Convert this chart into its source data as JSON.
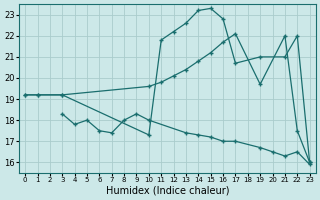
{
  "xlabel": "Humidex (Indice chaleur)",
  "xlim": [
    -0.5,
    23.5
  ],
  "ylim": [
    15.5,
    23.5
  ],
  "xticks": [
    0,
    1,
    2,
    3,
    4,
    5,
    6,
    7,
    8,
    9,
    10,
    11,
    12,
    13,
    14,
    15,
    16,
    17,
    18,
    19,
    20,
    21,
    22,
    23
  ],
  "yticks": [
    16,
    17,
    18,
    19,
    20,
    21,
    22,
    23
  ],
  "bg_color": "#cce8e8",
  "line_color": "#1a6e6e",
  "grid_color": "#aacccc",
  "lines": [
    {
      "x": [
        0,
        1,
        3,
        10,
        11,
        12,
        13,
        14,
        15,
        16,
        17,
        19,
        21,
        22,
        23
      ],
      "y": [
        19.2,
        19.2,
        19.2,
        19.6,
        19.8,
        20.1,
        20.4,
        20.8,
        21.2,
        21.7,
        22.1,
        19.7,
        22.0,
        17.5,
        16.0
      ]
    },
    {
      "x": [
        0,
        1,
        3,
        10,
        11,
        12,
        13,
        14,
        15,
        16,
        17,
        19,
        21,
        22,
        23
      ],
      "y": [
        19.2,
        19.2,
        19.2,
        17.3,
        21.8,
        22.2,
        22.6,
        23.2,
        23.3,
        22.8,
        20.7,
        21.0,
        21.0,
        22.0,
        16.0
      ]
    },
    {
      "x": [
        3,
        4,
        5,
        6,
        7,
        8,
        9,
        10,
        13,
        14,
        15,
        16,
        17,
        19,
        20,
        21,
        22,
        23
      ],
      "y": [
        18.3,
        17.8,
        18.0,
        17.5,
        17.4,
        18.0,
        18.3,
        18.0,
        17.4,
        17.3,
        17.2,
        17.0,
        17.0,
        16.7,
        16.5,
        16.3,
        16.5,
        15.9
      ]
    }
  ]
}
